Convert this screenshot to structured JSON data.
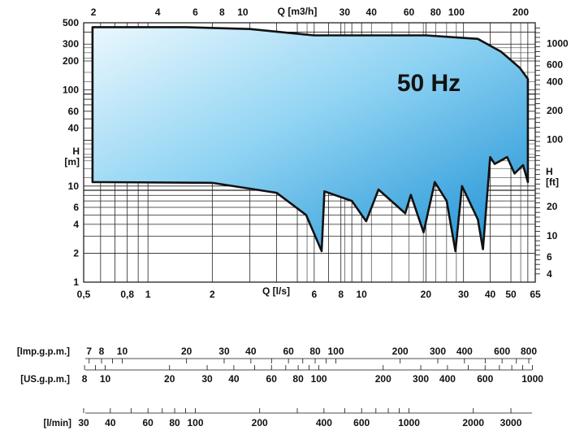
{
  "chart_data": {
    "type": "area",
    "title": "",
    "frequency_label": "50 Hz",
    "x_scale": "log",
    "y_scale": "log",
    "grid": true,
    "xlabel_bottom": "Q [l/s]",
    "xlabel_top": "Q [m3/h]",
    "ylabel_left": "H\n[m]",
    "ylabel_right": "H\n[ft]",
    "xlim": [
      0.5,
      65
    ],
    "ylim": [
      1,
      500
    ],
    "x_ticks_bottom": [
      "0,5",
      "0,8",
      "1",
      "2",
      "6",
      "8",
      "10",
      "20",
      "30",
      "40",
      "50",
      "65"
    ],
    "x_ticks_top": [
      "2",
      "4",
      "6",
      "8",
      "10",
      "30",
      "40",
      "60",
      "80",
      "100",
      "200"
    ],
    "y_ticks_left": [
      "500",
      "300",
      "200",
      "100",
      "60",
      "40",
      "10",
      "6",
      "4",
      "2",
      "1"
    ],
    "y_ticks_right": [
      "1000",
      "600",
      "400",
      "200",
      "100",
      "20",
      "10",
      "6",
      "4"
    ],
    "envelope_upper": {
      "x": [
        0.55,
        1.5,
        3,
        6,
        10,
        20,
        35,
        45,
        55,
        60
      ],
      "y": [
        450,
        450,
        430,
        370,
        370,
        370,
        340,
        250,
        170,
        130
      ]
    },
    "envelope_lower": {
      "x": [
        0.55,
        2,
        4,
        5.5,
        6.5,
        6.7,
        9,
        10.5,
        12,
        16,
        17,
        19.5,
        22,
        25,
        27.5,
        29.5,
        35,
        37,
        40,
        42,
        48,
        52,
        57,
        60
      ],
      "y": [
        11,
        10.8,
        8.5,
        5,
        2.1,
        8.8,
        7,
        4.3,
        9.2,
        5.2,
        8.1,
        3.3,
        11,
        7,
        2.1,
        10,
        4.5,
        2.2,
        20,
        17,
        20,
        13.5,
        16.5,
        11
      ]
    }
  },
  "conversion_scales": [
    {
      "label": "[Imp.g.p.m.]",
      "ticks": [
        "7",
        "8",
        "10",
        "20",
        "30",
        "40",
        "60",
        "80",
        "100",
        "200",
        "300",
        "400",
        "600",
        "800"
      ]
    },
    {
      "label": "[US.g.p.m.]",
      "ticks": [
        "8",
        "10",
        "20",
        "30",
        "40",
        "60",
        "80",
        "100",
        "200",
        "300",
        "400",
        "600",
        "1000"
      ]
    },
    {
      "label": "[l/min]",
      "ticks": [
        "30",
        "40",
        "60",
        "80",
        "100",
        "200",
        "400",
        "600",
        "1000",
        "2000",
        "3000"
      ]
    }
  ],
  "colors": {
    "fill_light": "#e6f6fd",
    "fill_dark": "#1a96d8",
    "line": "#111111",
    "grid": "#222222"
  }
}
